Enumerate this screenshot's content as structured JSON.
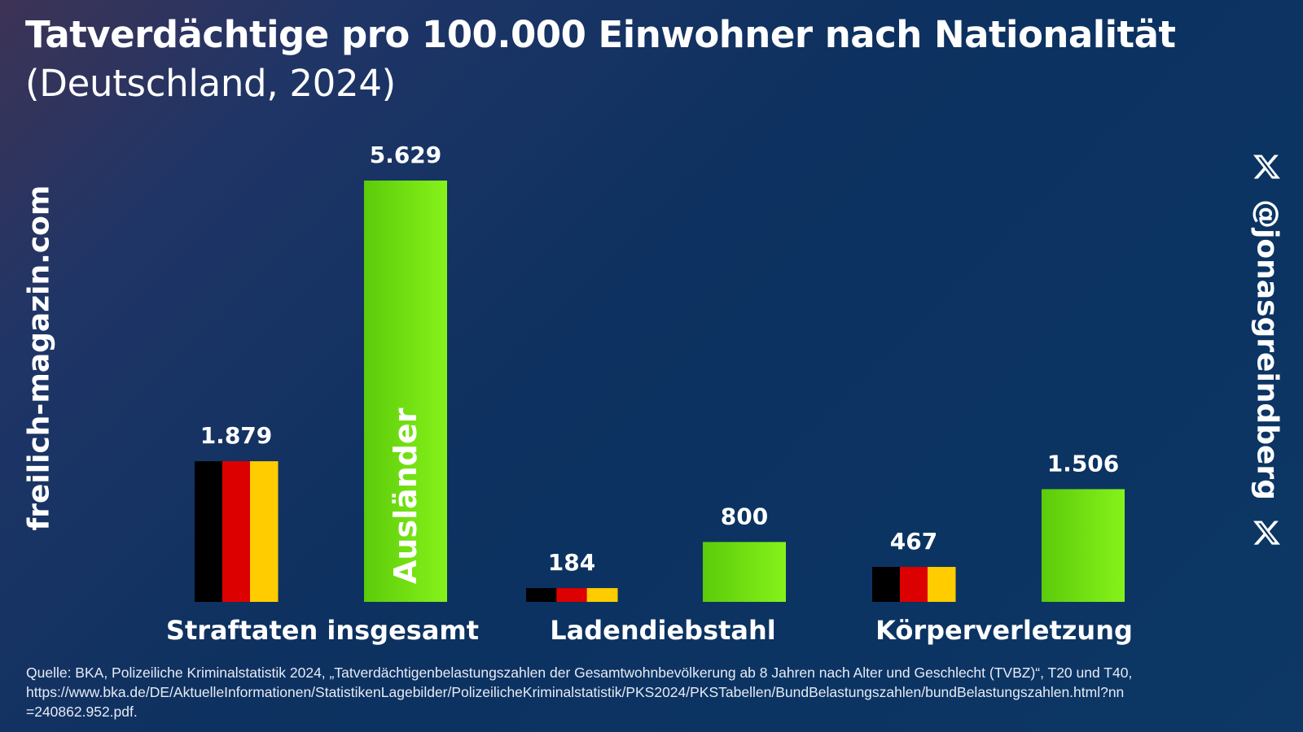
{
  "header": {
    "title": "Tatverdächtige pro 100.000 Einwohner nach Nationalität",
    "subtitle": "(Deutschland, 2024)"
  },
  "watermarks": {
    "left": "freilich-magazin.com",
    "right": "@jonasgreindberg",
    "right_icon": "x-logo-icon"
  },
  "source": {
    "line1": "Quelle: BKA, Polizeiliche Kriminalstatistik 2024, „Tatverdächtigenbelastungszahlen der Gesamtwohnbevölkerung ab 8 Jahren nach Alter und Geschlecht (TVBZ)“, T20 und T40,",
    "line2": "https://www.bka.de/DE/AktuelleInformationen/StatistikenLagebilder/PolizeilicheKriminalstatistik/PKS2024/PKSTabellen/BundBelastungszahlen/bundBelastungszahlen.html?nn",
    "line3": "=240862.952.pdf."
  },
  "colors": {
    "german_black": "#000000",
    "german_red": "#dd0000",
    "german_gold": "#ffcc00",
    "foreigner_green_dark": "#5ccb0a",
    "foreigner_green_light": "#86f21a"
  },
  "chart_data": {
    "type": "bar",
    "title": "Tatverdächtige pro 100.000 Einwohner nach Nationalität",
    "subtitle": "(Deutschland, 2024)",
    "categories": [
      "Straftaten insgesamt",
      "Ladendiebstahl",
      "Körperverletzung"
    ],
    "series": [
      {
        "name": "Deutsche",
        "style": "german-flag",
        "values": [
          1879,
          184,
          467
        ],
        "labels": [
          "1.879",
          "184",
          "467"
        ]
      },
      {
        "name": "Ausländer",
        "style": "green",
        "values": [
          5629,
          800,
          1506
        ],
        "labels": [
          "5.629",
          "800",
          "1.506"
        ]
      }
    ],
    "inner_bar_label": "Ausländer",
    "ylim": [
      0,
      5629
    ],
    "xlabel": "",
    "ylabel": "",
    "grid": false,
    "legend": "none"
  }
}
